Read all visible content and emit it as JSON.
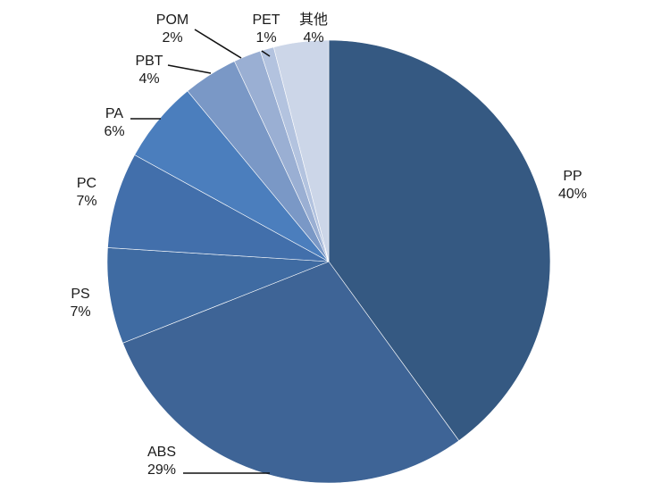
{
  "chart_data": {
    "type": "pie",
    "categories": [
      "PP",
      "ABS",
      "PS",
      "PC",
      "PA",
      "PBT",
      "POM",
      "PET",
      "其他"
    ],
    "values": [
      40,
      29,
      7,
      7,
      6,
      4,
      2,
      1,
      4
    ],
    "value_labels": [
      "40%",
      "29%",
      "7%",
      "7%",
      "6%",
      "4%",
      "2%",
      "1%",
      "4%"
    ],
    "colors": [
      "#355982",
      "#3e6496",
      "#3f6ba2",
      "#426fab",
      "#4b7ebd",
      "#7a98c6",
      "#9aafd3",
      "#b3c3df",
      "#ccd6e8"
    ],
    "start_angle": "12 o'clock",
    "direction": "clockwise",
    "legend": "none",
    "title": ""
  }
}
